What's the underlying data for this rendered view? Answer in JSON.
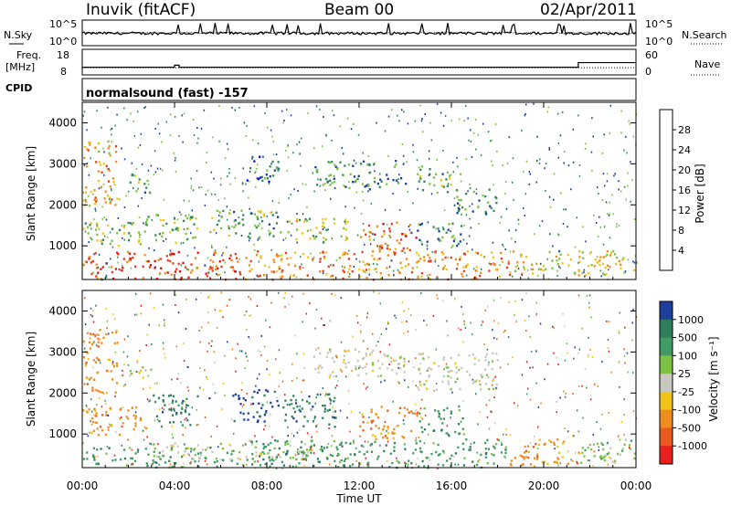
{
  "header": {
    "station": "Inuvik (fitACF)",
    "beam": "Beam 00",
    "date": "02/Apr/2011"
  },
  "chart_data": [
    {
      "type": "line",
      "panel": "noise",
      "left_label": "N.Sky",
      "right_label": "N.Search",
      "left_ticks": [
        "10^5",
        "10^0"
      ],
      "right_ticks": [
        "10^5",
        "10^0"
      ],
      "yscale": "log",
      "ylim": [
        1,
        100000
      ],
      "series": [
        {
          "name": "N.Sky",
          "style": "solid"
        },
        {
          "name": "N.Search",
          "style": "dotted"
        }
      ]
    },
    {
      "type": "line",
      "panel": "frequency",
      "left_label_1": "Freq.",
      "left_label_2": "[MHz]",
      "left_ticks": [
        "18",
        "8"
      ],
      "right_ticks": [
        "60",
        "0"
      ],
      "right_label": "Nave",
      "freq_ylim": [
        8,
        18
      ],
      "nave_ylim": [
        0,
        60
      ],
      "freq_series": {
        "name": "Freq.",
        "x": [
          0,
          4,
          4.2,
          21.5,
          23.8
        ],
        "y": [
          11,
          11.8,
          11,
          12.8,
          12.8
        ]
      },
      "nave_series": {
        "name": "Nave",
        "approx": 17
      }
    },
    {
      "type": "table",
      "panel": "cpid",
      "label": "CPID",
      "text": "normalsound (fast) -157"
    },
    {
      "type": "heatmap",
      "panel": "power",
      "ylabel": "Slant Range [km]",
      "yticks": [
        "1000",
        "2000",
        "3000",
        "4000"
      ],
      "ylim": [
        180,
        4500
      ],
      "xlim": [
        0,
        24
      ],
      "colorbar_label": "Power [dB]",
      "colorbar_ticks": [
        "28",
        "24",
        "20",
        "16",
        "12",
        "8",
        "4"
      ],
      "colorbar_range": [
        0,
        30
      ],
      "colors": [
        "#0000ff",
        "#1c3f9b",
        "#2e8b57",
        "#7cc242",
        "#f0c419",
        "#f08c1e",
        "#e8391f",
        "#ff0000"
      ],
      "echo_regions": [
        {
          "t0": 0.0,
          "t1": 7.0,
          "r0": 200,
          "r1": 900,
          "level": 26
        },
        {
          "t0": 7.0,
          "t1": 18.5,
          "r0": 200,
          "r1": 900,
          "level": 22
        },
        {
          "t0": 18.5,
          "t1": 24.0,
          "r0": 300,
          "r1": 900,
          "level": 18
        },
        {
          "t0": 0.0,
          "t1": 1.5,
          "r0": 2000,
          "r1": 3600,
          "level": 20
        },
        {
          "t0": 0.0,
          "t1": 2.5,
          "r0": 1000,
          "r1": 1600,
          "level": 14
        },
        {
          "t0": 2.5,
          "t1": 5.0,
          "r0": 1100,
          "r1": 1800,
          "level": 14
        },
        {
          "t0": 5.5,
          "t1": 8.5,
          "r0": 1200,
          "r1": 1900,
          "level": 12
        },
        {
          "t0": 8.5,
          "t1": 11.5,
          "r0": 1100,
          "r1": 1700,
          "level": 16
        },
        {
          "t0": 12.0,
          "t1": 14.5,
          "r0": 900,
          "r1": 1600,
          "level": 24
        },
        {
          "t0": 14.5,
          "t1": 16.5,
          "r0": 1000,
          "r1": 1600,
          "level": 10
        },
        {
          "t0": 10.0,
          "t1": 14.0,
          "r0": 2400,
          "r1": 3100,
          "level": 10
        },
        {
          "t0": 14.5,
          "t1": 16.0,
          "r0": 2300,
          "r1": 3000,
          "level": 12
        },
        {
          "t0": 16.0,
          "t1": 18.0,
          "r0": 1800,
          "r1": 2400,
          "level": 10
        },
        {
          "t0": 7.0,
          "t1": 8.5,
          "r0": 2500,
          "r1": 3200,
          "level": 8
        },
        {
          "t0": 2.0,
          "t1": 3.0,
          "r0": 2300,
          "r1": 2800,
          "level": 12
        }
      ]
    },
    {
      "type": "heatmap",
      "panel": "velocity",
      "ylabel": "Slant Range [km]",
      "yticks": [
        "1000",
        "2000",
        "3000",
        "4000"
      ],
      "ylim": [
        180,
        4500
      ],
      "xlim": [
        0,
        24
      ],
      "xticks": [
        "00:00",
        "04:00",
        "08:00",
        "12:00",
        "16:00",
        "20:00",
        "00:00"
      ],
      "xlabel": "Time UT",
      "colorbar_label": "Velocity [m s⁻¹]",
      "colorbar_ticks": [
        "1000",
        "500",
        "100",
        "25",
        "-25",
        "-100",
        "-500",
        "-1000"
      ],
      "colors": [
        "#1c3f9b",
        "#2e7d5b",
        "#3f9b63",
        "#7cc242",
        "#c8c8c0",
        "#f0c419",
        "#f08c1e",
        "#e85a1e",
        "#e8201e"
      ],
      "echo_regions": [
        {
          "t0": 0.0,
          "t1": 7.0,
          "r0": 200,
          "r1": 700,
          "class": 2
        },
        {
          "t0": 3.0,
          "t1": 10.0,
          "r0": 400,
          "r1": 800,
          "class": 4
        },
        {
          "t0": 7.0,
          "t1": 18.5,
          "r0": 200,
          "r1": 900,
          "class": 2
        },
        {
          "t0": 18.5,
          "t1": 21.5,
          "r0": 250,
          "r1": 900,
          "class": 6
        },
        {
          "t0": 21.5,
          "t1": 24.0,
          "r0": 300,
          "r1": 900,
          "class": 3
        },
        {
          "t0": 0.0,
          "t1": 1.5,
          "r0": 2000,
          "r1": 3600,
          "class": 6
        },
        {
          "t0": 0.0,
          "t1": 2.8,
          "r0": 1000,
          "r1": 1700,
          "class": 6
        },
        {
          "t0": 3.0,
          "t1": 5.0,
          "r0": 1200,
          "r1": 2000,
          "class": 1
        },
        {
          "t0": 6.5,
          "t1": 8.5,
          "r0": 1300,
          "r1": 2100,
          "class": 0
        },
        {
          "t0": 8.5,
          "t1": 11.0,
          "r0": 1200,
          "r1": 2000,
          "class": 1
        },
        {
          "t0": 12.0,
          "t1": 14.5,
          "r0": 900,
          "r1": 1700,
          "class": 6
        },
        {
          "t0": 14.5,
          "t1": 16.5,
          "r0": 1000,
          "r1": 1700,
          "class": 2
        },
        {
          "t0": 10.0,
          "t1": 14.0,
          "r0": 2400,
          "r1": 3100,
          "class": 4
        },
        {
          "t0": 14.5,
          "t1": 18.0,
          "r0": 2100,
          "r1": 3000,
          "class": 4
        },
        {
          "t0": 2.0,
          "t1": 3.0,
          "r0": 2400,
          "r1": 2800,
          "class": 4
        }
      ]
    }
  ]
}
